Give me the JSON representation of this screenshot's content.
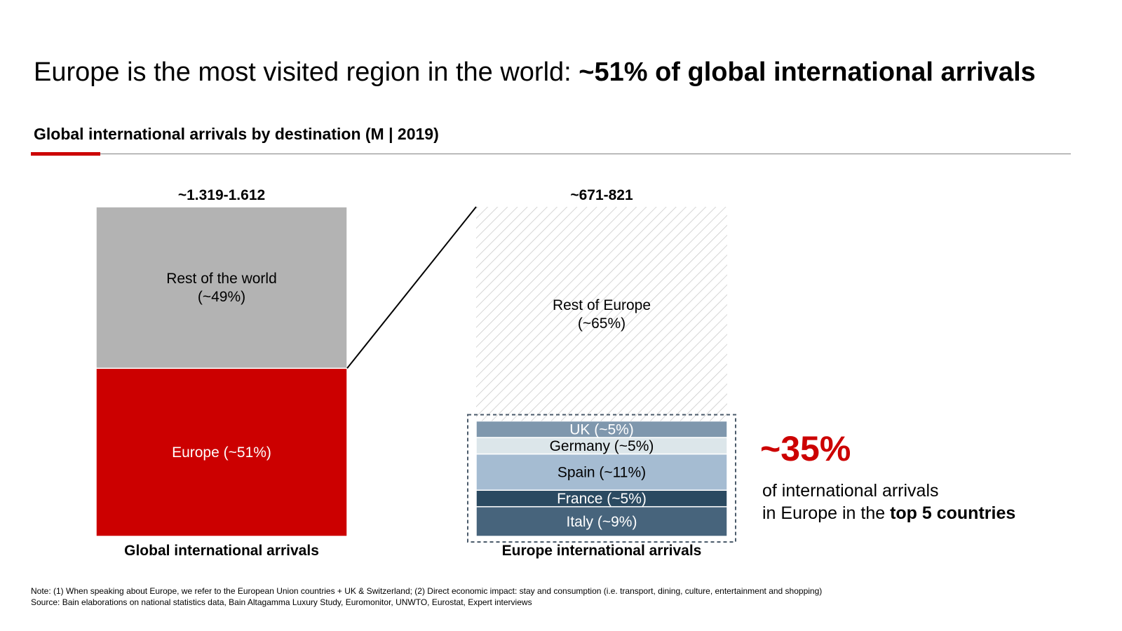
{
  "title": {
    "regular": "Europe is the most visited region in the world: ",
    "bold": "~51% of global international arrivals"
  },
  "subtitle": "Global international arrivals by destination (M | 2019)",
  "colors": {
    "accent": "#cc0000",
    "rest_of_world": "#b3b3b3",
    "europe": "#cc0000",
    "rest_of_europe_hatch": "#c8c8c8",
    "uk": "#7f97ad",
    "germany": "#dce6ea",
    "spain": "#a5bcd2",
    "france": "#2b4a61",
    "italy": "#47647c"
  },
  "chart_data": {
    "type": "stacked-bar",
    "bars": [
      {
        "name": "Global international arrivals",
        "total_label": "~1.319-1.612",
        "segments": [
          {
            "name": "Europe",
            "label": "Europe (~51%)",
            "value": 51,
            "color": "#cc0000",
            "text_color": "#ffffff"
          },
          {
            "name": "Rest of the world",
            "label_lines": [
              "Rest of the world",
              "(~49%)"
            ],
            "value": 49,
            "color": "#b3b3b3",
            "text_color": "#000000"
          }
        ]
      },
      {
        "name": "Europe international arrivals",
        "total_label": "~671-821",
        "segments": [
          {
            "name": "Italy",
            "label": "Italy (~9%)",
            "value": 9,
            "color": "#47647c",
            "text_color": "#ffffff"
          },
          {
            "name": "France",
            "label": "France  (~5%)",
            "value": 5,
            "color": "#2b4a61",
            "text_color": "#ffffff"
          },
          {
            "name": "Spain",
            "label": "Spain (~11%)",
            "value": 11,
            "color": "#a5bcd2",
            "text_color": "#000000"
          },
          {
            "name": "Germany",
            "label": "Germany (~5%)",
            "value": 5,
            "color": "#dce6ea",
            "text_color": "#000000"
          },
          {
            "name": "UK",
            "label": "UK (~5%)",
            "value": 5,
            "color": "#7f97ad",
            "text_color": "#ffffff"
          },
          {
            "name": "Rest of Europe",
            "label_lines": [
              "Rest of Europe",
              "(~65%)"
            ],
            "value": 65,
            "color": "hatch",
            "text_color": "#000000"
          }
        ]
      }
    ],
    "top5_highlight": {
      "value": "~35%",
      "countries": [
        "UK",
        "Germany",
        "Spain",
        "France",
        "Italy"
      ]
    }
  },
  "callout": {
    "percent": "~35%",
    "line1": "of international arrivals",
    "line2_regular": "in Europe in the ",
    "line2_bold": "top 5 countries"
  },
  "footnote": {
    "note": "Note: (1) When speaking about Europe, we refer to the European Union countries + UK & Switzerland; (2) Direct economic impact: stay and consumption (i.e. transport, dining, culture, entertainment and shopping)",
    "source": "Source: Bain elaborations on national statistics data, Bain Altagamma Luxury Study, Euromonitor, UNWTO, Eurostat, Expert interviews"
  }
}
